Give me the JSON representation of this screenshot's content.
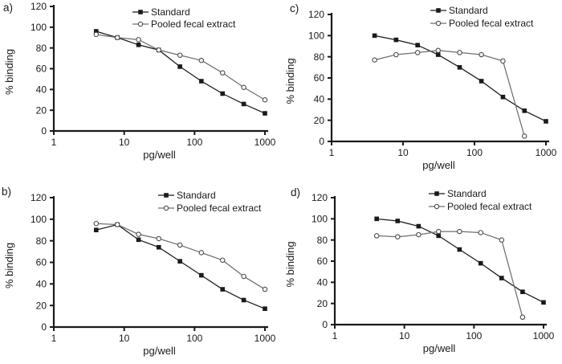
{
  "chart_data": [
    {
      "type": "line",
      "panel_label": "a)",
      "xlabel": "pg/well",
      "ylabel": "% binding",
      "x_scale": "log",
      "xlim": [
        1,
        1000
      ],
      "ylim": [
        0,
        120
      ],
      "x_ticks": [
        1,
        10,
        100,
        1000
      ],
      "y_ticks": [
        0,
        20,
        40,
        60,
        80,
        100,
        120
      ],
      "grid": false,
      "legend_position": "top-center",
      "colors": {
        "standard": "#1a1a1a",
        "pooled": "#6f6f6f",
        "pooled_marker": "#4d4d4d"
      },
      "series": [
        {
          "name": "Standard",
          "marker": "filled-square",
          "color": "#1a1a1a",
          "marker_color": "#1a1a1a",
          "x": [
            4,
            8,
            16,
            31,
            62,
            125,
            250,
            500,
            1000
          ],
          "y": [
            96,
            90,
            83,
            78,
            62,
            48,
            36,
            26,
            17
          ]
        },
        {
          "name": "Pooled fecal extract",
          "marker": "open-circle",
          "color": "#6f6f6f",
          "marker_color": "#4d4d4d",
          "x": [
            4,
            8,
            16,
            31,
            62,
            125,
            250,
            500,
            1000
          ],
          "y": [
            93,
            90,
            88,
            78,
            73,
            68,
            56,
            42,
            30
          ]
        }
      ]
    },
    {
      "type": "line",
      "panel_label": "b)",
      "xlabel": "pg/well",
      "ylabel": "% binding",
      "x_scale": "log",
      "xlim": [
        1,
        1000
      ],
      "ylim": [
        0,
        120
      ],
      "x_ticks": [
        1,
        10,
        100,
        1000
      ],
      "y_ticks": [
        0,
        20,
        40,
        60,
        80,
        100,
        120
      ],
      "grid": false,
      "legend_position": "top-center",
      "colors": {
        "standard": "#1a1a1a",
        "pooled": "#6f6f6f",
        "pooled_marker": "#4d4d4d"
      },
      "series": [
        {
          "name": "Standard",
          "marker": "filled-square",
          "color": "#1a1a1a",
          "marker_color": "#1a1a1a",
          "x": [
            4,
            8,
            16,
            31,
            62,
            125,
            250,
            500,
            1000
          ],
          "y": [
            90,
            95,
            81,
            74,
            61,
            48,
            35,
            25,
            17
          ]
        },
        {
          "name": "Pooled fecal extract",
          "marker": "open-circle",
          "color": "#6f6f6f",
          "marker_color": "#4d4d4d",
          "x": [
            4,
            8,
            16,
            31,
            62,
            125,
            250,
            500,
            1000
          ],
          "y": [
            96,
            95,
            86,
            82,
            76,
            69,
            62,
            47,
            35
          ]
        }
      ]
    },
    {
      "type": "line",
      "panel_label": "c)",
      "xlabel": "pg/well",
      "ylabel": "% binding",
      "x_scale": "log",
      "xlim": [
        1,
        1000
      ],
      "ylim": [
        0,
        120
      ],
      "x_ticks": [
        1,
        10,
        100,
        1000
      ],
      "y_ticks": [
        0,
        20,
        40,
        60,
        80,
        100,
        120
      ],
      "grid": false,
      "legend_position": "top-center",
      "colors": {
        "standard": "#1a1a1a",
        "pooled": "#6f6f6f",
        "pooled_marker": "#4d4d4d"
      },
      "series": [
        {
          "name": "Standard",
          "marker": "filled-square",
          "color": "#1a1a1a",
          "marker_color": "#1a1a1a",
          "x": [
            4,
            8,
            16,
            31,
            62,
            125,
            250,
            500,
            1000
          ],
          "y": [
            100,
            96,
            91,
            82,
            70,
            57,
            42,
            29,
            19
          ]
        },
        {
          "name": "Pooled fecal extract",
          "marker": "open-circle",
          "color": "#6f6f6f",
          "marker_color": "#4d4d4d",
          "x": [
            4,
            8,
            16,
            31,
            62,
            125,
            250,
            500
          ],
          "y": [
            77,
            82,
            84,
            86,
            84,
            82,
            76,
            5
          ]
        }
      ]
    },
    {
      "type": "line",
      "panel_label": "d)",
      "xlabel": "pg/well",
      "ylabel": "% binding",
      "x_scale": "log",
      "xlim": [
        1,
        1000
      ],
      "ylim": [
        0,
        120
      ],
      "x_ticks": [
        1,
        10,
        100,
        1000
      ],
      "y_ticks": [
        0,
        20,
        40,
        60,
        80,
        100,
        120
      ],
      "grid": false,
      "legend_position": "top-center",
      "colors": {
        "standard": "#1a1a1a",
        "pooled": "#6f6f6f",
        "pooled_marker": "#4d4d4d"
      },
      "series": [
        {
          "name": "Standard",
          "marker": "filled-square",
          "color": "#1a1a1a",
          "marker_color": "#1a1a1a",
          "x": [
            4,
            8,
            16,
            31,
            62,
            125,
            250,
            500,
            1000
          ],
          "y": [
            100,
            98,
            93,
            84,
            71,
            58,
            44,
            31,
            21
          ]
        },
        {
          "name": "Pooled fecal extract",
          "marker": "open-circle",
          "color": "#6f6f6f",
          "marker_color": "#4d4d4d",
          "x": [
            4,
            8,
            16,
            31,
            62,
            125,
            250,
            500
          ],
          "y": [
            84,
            83,
            85,
            88,
            88,
            87,
            80,
            7
          ]
        }
      ]
    }
  ]
}
